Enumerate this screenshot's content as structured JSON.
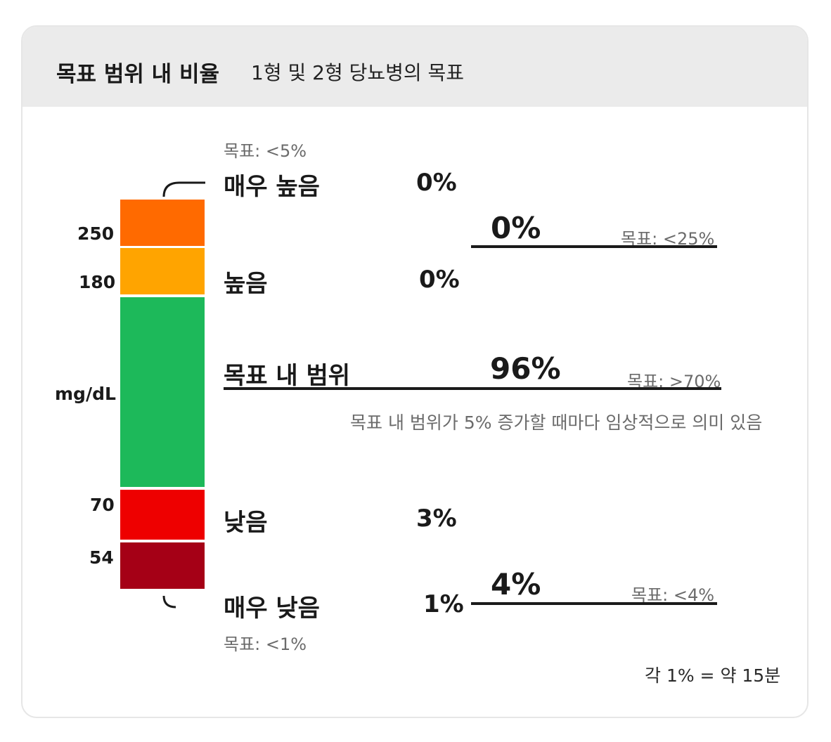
{
  "header": {
    "title": "목표 범위 내 비율",
    "subtitle": "1형 및 2형 당뇨병의 목표"
  },
  "unit_label": "mg/dL",
  "scale_note": "각 1% = 약 15분",
  "tir_note": "목표 내 범위가 5% 증가할 때마다 임상적으로 의미 있음",
  "colors": {
    "very_high": "#ff6a00",
    "high": "#ffa400",
    "in_range": "#1db95a",
    "low": "#ee0000",
    "very_low": "#a50016"
  },
  "chart_data": {
    "type": "bar",
    "orientation": "vertical-stacked",
    "y_unit": "mg/dL",
    "thresholds": [
      "250",
      "180",
      "70",
      "54"
    ],
    "categories": [
      "매우 높음",
      "높음",
      "목표 내 범위",
      "낮음",
      "매우 낮음"
    ],
    "values": [
      0,
      0,
      96,
      3,
      1
    ],
    "value_labels": [
      "0%",
      "0%",
      "96%",
      "3%",
      "1%"
    ],
    "goals": {
      "very_high": "목표: <5%",
      "high_combined": "목표: <25%",
      "in_range": "목표: >70%",
      "low_combined": "목표: <4%",
      "very_low": "목표: <1%"
    },
    "combined": {
      "high_total": "0%",
      "low_total": "4%"
    }
  }
}
